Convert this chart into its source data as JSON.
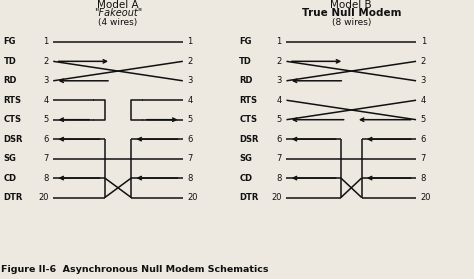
{
  "bg_color": "#ede8e0",
  "title_a_line1": "Model A",
  "title_a_line2": "\"Fakeout\"",
  "title_a_line3": "(4 wires)",
  "title_b_line1": "Model B",
  "title_b_line2": "True Null Modem",
  "title_b_line3": "(8 wires)",
  "pin_labels": [
    "FG",
    "TD",
    "RD",
    "RTS",
    "CTS",
    "DSR",
    "SG",
    "CD",
    "DTR"
  ],
  "pin_numbers": [
    1,
    2,
    3,
    4,
    5,
    6,
    7,
    8,
    20
  ],
  "caption": "Figure II-6  Asynchronous Null Modem Schematics",
  "line_color": "#111111",
  "text_color": "#111111"
}
